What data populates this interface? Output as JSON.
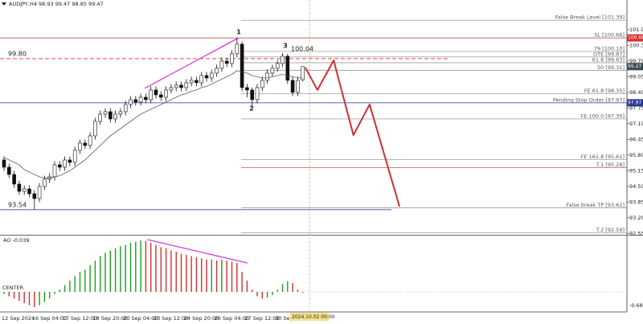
{
  "header": "AUDJPY,H4  98.93 99.47 98.85 99.47",
  "chart_data": [
    {
      "type": "candlestick",
      "categories": [
        "12 Sep 2024",
        null,
        null,
        null,
        null,
        null,
        "16 Sep 04:00",
        null,
        null,
        null,
        null,
        null,
        "17 Sep 12:00",
        null,
        null,
        null,
        null,
        null,
        "18 Sep 20:00",
        null,
        null,
        null,
        null,
        null,
        "20 Sep 04:00",
        null,
        null,
        null,
        null,
        null,
        "23 Sep 12:00",
        null,
        null,
        null,
        null,
        null,
        "24 Sep 20:00",
        null,
        null,
        null,
        null,
        null,
        "26 Sep 04:00",
        null,
        null,
        null,
        null,
        null,
        "27 Sep 12:00",
        null,
        null,
        null,
        null,
        null,
        "30 Sep",
        null,
        null,
        null,
        null,
        null
      ],
      "open": [
        95.6,
        95.3,
        95.0,
        94.6,
        94.3,
        94.4,
        94.2,
        94.0,
        94.5,
        94.8,
        94.9,
        95.4,
        95.3,
        95.6,
        95.5,
        96.0,
        96.3,
        96.2,
        96.6,
        97.2,
        97.5,
        97.6,
        97.3,
        97.5,
        97.6,
        97.9,
        98.1,
        98.0,
        98.2,
        98.1,
        98.5,
        98.3,
        98.2,
        98.5,
        98.6,
        98.7,
        98.6,
        98.8,
        98.9,
        98.8,
        99.1,
        99.0,
        99.2,
        99.4,
        99.7,
        99.6,
        100.0,
        100.4,
        98.6,
        98.5,
        98.1,
        98.6,
        98.9,
        99.2,
        99.4,
        99.6,
        99.9,
        98.9,
        98.4,
        98.93
      ],
      "high": [
        95.75,
        95.45,
        95.15,
        94.75,
        94.55,
        94.55,
        94.35,
        94.65,
        94.95,
        95.05,
        95.55,
        95.55,
        95.75,
        95.75,
        96.15,
        96.45,
        96.45,
        96.75,
        97.35,
        97.65,
        97.75,
        97.75,
        97.65,
        97.75,
        98.05,
        98.25,
        98.25,
        98.35,
        98.35,
        98.65,
        98.65,
        98.45,
        98.65,
        98.75,
        98.85,
        98.85,
        98.95,
        99.05,
        99.05,
        99.25,
        99.25,
        99.35,
        99.55,
        99.85,
        99.85,
        100.15,
        100.66,
        100.5,
        98.75,
        98.6,
        98.75,
        99.05,
        99.35,
        99.55,
        99.75,
        100.04,
        100.0,
        99.05,
        99.05,
        99.47
      ],
      "low": [
        95.15,
        94.85,
        94.45,
        94.15,
        94.15,
        94.05,
        93.54,
        93.85,
        94.35,
        94.65,
        94.75,
        95.15,
        95.15,
        95.35,
        95.35,
        95.85,
        96.05,
        96.05,
        96.45,
        97.05,
        97.35,
        97.15,
        97.15,
        97.35,
        97.45,
        97.75,
        97.85,
        97.85,
        97.95,
        97.95,
        98.15,
        98.05,
        98.05,
        98.35,
        98.45,
        98.45,
        98.45,
        98.65,
        98.65,
        98.65,
        98.85,
        98.85,
        99.05,
        99.25,
        99.45,
        99.45,
        99.85,
        98.45,
        98.2,
        97.75,
        97.95,
        98.45,
        98.75,
        99.05,
        99.25,
        99.45,
        98.75,
        98.25,
        98.25,
        98.85
      ],
      "close": [
        95.3,
        95.0,
        94.6,
        94.3,
        94.4,
        94.2,
        94.0,
        94.5,
        94.8,
        94.9,
        95.4,
        95.3,
        95.6,
        95.5,
        96.0,
        96.3,
        96.2,
        96.6,
        97.2,
        97.5,
        97.6,
        97.3,
        97.5,
        97.6,
        97.9,
        98.1,
        98.0,
        98.2,
        98.1,
        98.5,
        98.3,
        98.2,
        98.5,
        98.6,
        98.7,
        98.6,
        98.8,
        98.9,
        98.8,
        99.1,
        99.0,
        99.2,
        99.4,
        99.7,
        99.6,
        100.0,
        100.4,
        98.6,
        98.5,
        98.1,
        98.6,
        98.9,
        99.2,
        99.4,
        99.6,
        99.9,
        98.9,
        98.4,
        98.9,
        99.47
      ],
      "ma": {
        "color": "#444444",
        "values": [
          95.7,
          95.6,
          95.5,
          95.4,
          95.2,
          95.1,
          95.0,
          94.9,
          94.85,
          94.85,
          94.9,
          94.95,
          95.05,
          95.15,
          95.3,
          95.45,
          95.6,
          95.8,
          96.0,
          96.2,
          96.4,
          96.6,
          96.75,
          96.9,
          97.05,
          97.2,
          97.35,
          97.5,
          97.6,
          97.7,
          97.8,
          97.9,
          98.0,
          98.1,
          98.2,
          98.3,
          98.35,
          98.45,
          98.5,
          98.6,
          98.65,
          98.75,
          98.85,
          98.95,
          99.05,
          99.15,
          99.3,
          99.25,
          99.2,
          99.1,
          99.05,
          99.0,
          99.0,
          99.05,
          99.1,
          99.15,
          99.1,
          99.05,
          99.0,
          99.0
        ]
      },
      "projection": {
        "color": "#d32f2f",
        "x": [
          59.5,
          61.9,
          65.1,
          69.0,
          72.2,
          78.1
        ],
        "values": [
          99.43,
          98.5,
          99.73,
          96.63,
          97.9,
          93.67
        ]
      },
      "trendlines": [
        {
          "color": "#d63adf",
          "x": [
            27.8,
            46.3
          ],
          "values": [
            98.57,
            100.66
          ]
        }
      ],
      "levels": [
        {
          "label": "False Break Level [101.39]",
          "value": 101.39,
          "color": "#8a8a8a",
          "line": "partial"
        },
        {
          "label": "SL [100.66]",
          "value": 100.66,
          "color": "#b23a3a",
          "line": "full"
        },
        {
          "label": "79 [100.10]",
          "value": 100.1,
          "color": "#8a8a8a",
          "line": "partial"
        },
        {
          "label": "OTE [99.87]",
          "value": 99.87,
          "color": "#8a8a8a",
          "line": "partial"
        },
        {
          "label": "61.8 [99.63]",
          "value": 99.63,
          "color": "#8a8a8a",
          "line": "partial"
        },
        {
          "label": "50 [99.31]",
          "value": 99.31,
          "color": "#8a8a8a",
          "line": "partial"
        },
        {
          "label": "FE 61.8 [98.35]",
          "value": 98.35,
          "color": "#8a8a8a",
          "line": "partial"
        },
        {
          "label": "Pending Stop Order [97.97]",
          "value": 97.97,
          "color": "#283593",
          "line": "full"
        },
        {
          "label": "FE 100.0 [97.30]",
          "value": 97.3,
          "color": "#8a8a8a",
          "line": "partial"
        },
        {
          "label": "FE 161.8 [95.61]",
          "value": 95.61,
          "color": "#8a8a8a",
          "line": "partial"
        },
        {
          "label": "T.1 [95.28]",
          "value": 95.28,
          "color": "#b23a3a",
          "line": "partial"
        },
        {
          "label": "False break TP [93.62]",
          "value": 93.62,
          "color": "#8a8a8a",
          "line": "partial"
        },
        {
          "label": "T.2 [92.59]",
          "value": 92.59,
          "color": "#8a8a8a",
          "line": "partial"
        }
      ],
      "markers": [
        {
          "value": 99.8,
          "label": "99.80",
          "color": "#d32f2f"
        },
        {
          "value": 93.54,
          "color": "#3949ab"
        }
      ],
      "price_tags": [
        {
          "value": 100.66,
          "color": "#d32f2f"
        },
        {
          "value": 99.47,
          "color": "#37474f"
        },
        {
          "value": 97.97,
          "color": "#283593"
        }
      ],
      "annotations": [
        "1",
        "2",
        "3",
        "100.04"
      ],
      "crosshair_label": "2024.10.02 00:00",
      "ylim": [
        92.5,
        102.23
      ],
      "yticks": [
        {
          "value": 101,
          "label": "101.00"
        },
        100.35,
        {
          "value": 99.7,
          "label": "99.70"
        },
        99.05,
        {
          "value": 98.4,
          "label": "98.40"
        },
        97.75,
        {
          "value": 97.1,
          "label": "97.10"
        },
        96.45,
        {
          "value": 95.8,
          "label": "95.80"
        },
        95.15,
        {
          "value": 94.5,
          "label": "94.50"
        },
        93.85,
        {
          "value": 93.2,
          "label": "93.20"
        },
        92.55
      ]
    },
    {
      "type": "bar",
      "title": "AO -0.039",
      "values": [
        -0.1,
        -0.2,
        -0.3,
        -0.4,
        -0.5,
        -0.6,
        -0.68,
        -0.6,
        -0.45,
        -0.3,
        -0.1,
        0.1,
        0.3,
        0.5,
        0.7,
        0.9,
        1.0,
        1.2,
        1.4,
        1.6,
        1.75,
        1.85,
        1.95,
        2.05,
        2.1,
        2.2,
        2.25,
        2.3,
        2.28,
        2.2,
        2.1,
        2.0,
        1.95,
        1.85,
        1.8,
        1.7,
        1.65,
        1.6,
        1.55,
        1.5,
        1.45,
        1.45,
        1.4,
        1.45,
        1.4,
        1.35,
        1.3,
        0.9,
        0.5,
        0.1,
        -0.2,
        -0.3,
        -0.25,
        -0.15,
        0.1,
        0.35,
        0.47,
        0.4,
        0.1,
        -0.039
      ],
      "up_color": "#1b9e1b",
      "down_color": "#d32f2f",
      "center_label": "CENTER",
      "center": 0,
      "trendlines": [
        {
          "color": "#d63adf",
          "x": [
            28.3,
            48.1
          ],
          "values": [
            2.34,
            1.29
          ]
        }
      ],
      "ylim": [
        -0.9,
        2.52
      ],
      "yticks": [
        -0.683
      ]
    }
  ]
}
